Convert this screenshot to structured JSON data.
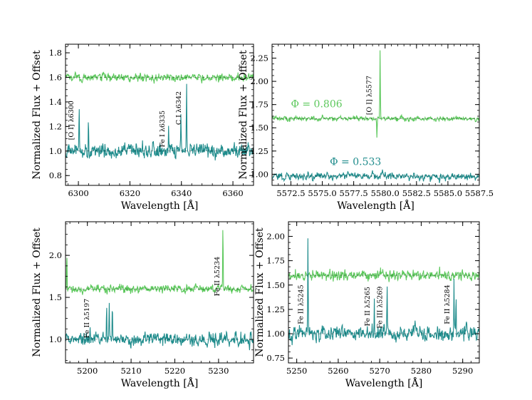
{
  "colors": {
    "phase_high": "#5cc85c",
    "phase_low": "#1f8c8c",
    "reference": "#000000"
  },
  "chart_data": [
    {
      "type": "line",
      "id": "oi-6300",
      "xlabel": "Wavelength [Å]",
      "ylabel": "Normalized Flux + Offset",
      "xlim": [
        6295,
        6368
      ],
      "ylim": [
        0.72,
        1.87
      ],
      "xticks": [
        6300,
        6320,
        6340,
        6360
      ],
      "xtick_labels": [
        "6300",
        "6320",
        "6340",
        "6360"
      ],
      "yticks": [
        0.8,
        1.0,
        1.2,
        1.4,
        1.6,
        1.8
      ],
      "ytick_labels": [
        "0.8",
        "1.0",
        "1.2",
        "1.4",
        "1.6",
        "1.8"
      ],
      "series": [
        {
          "name": "Φ = 0.806",
          "color": "#5cc85c",
          "baseline": 1.6,
          "noise": 0.025,
          "features": []
        },
        {
          "name": "Φ = 0.533",
          "color": "#1f8c8c",
          "baseline": 1.0,
          "noise": 0.045,
          "features": [
            {
              "x": 6300.3,
              "height": 0.34
            },
            {
              "x": 6303.9,
              "height": 0.25
            },
            {
              "x": 6335.0,
              "height": 0.22
            },
            {
              "x": 6339.8,
              "height": 0.25
            },
            {
              "x": 6342.0,
              "height": 0.56
            }
          ]
        }
      ],
      "annotations": [
        {
          "text": "[O I] λ6300",
          "x": 6298.0,
          "y": 1.25
        },
        {
          "text": "Fe I λ6335",
          "x": 6333.5,
          "y": 1.18
        },
        {
          "text": "C I λ6342",
          "x": 6339.8,
          "y": 1.35
        }
      ],
      "phase_labels": []
    },
    {
      "type": "line",
      "id": "oi-5577",
      "xlabel": "Wavelength [Å]",
      "ylabel": "Normalized Flux + Offset",
      "xlim": [
        5571.0,
        5587.5
      ],
      "ylim": [
        0.88,
        2.4
      ],
      "xticks": [
        5572.5,
        5575.0,
        5577.5,
        5580.0,
        5582.5,
        5585.0,
        5587.5
      ],
      "xtick_labels": [
        "5572.5",
        "5575.0",
        "5577.5",
        "5580.0",
        "5582.5",
        "5585.0",
        "5587.5"
      ],
      "yticks": [
        1.0,
        1.25,
        1.5,
        1.75,
        2.0,
        2.25
      ],
      "ytick_labels": [
        "1.00",
        "1.25",
        "1.50",
        "1.75",
        "2.00",
        "2.25"
      ],
      "series": [
        {
          "name": "Φ = 0.806",
          "color": "#5cc85c",
          "baseline": 1.6,
          "noise": 0.02,
          "features": [
            {
              "x": 5579.6,
              "height": 0.75
            },
            {
              "x": 5579.35,
              "height": -0.2
            }
          ]
        },
        {
          "name": "Φ = 0.533",
          "color": "#1f8c8c",
          "baseline": 0.98,
          "noise": 0.03,
          "features": []
        }
      ],
      "annotations": [
        {
          "text": "[O I] λ5577",
          "x": 5578.9,
          "y": 1.85
        }
      ],
      "phase_labels": [
        {
          "text": "Φ = 0.806",
          "color": "#5cc85c",
          "x": 5572.5,
          "y": 1.72
        },
        {
          "text": "Φ = 0.533",
          "color": "#1f8c8c",
          "x": 5575.6,
          "y": 1.1
        }
      ]
    },
    {
      "type": "line",
      "id": "fe-ii-5197",
      "xlabel": "Wavelength [Å]",
      "ylabel": "Normalized Flux + Offset",
      "xlim": [
        5195,
        5238
      ],
      "ylim": [
        0.72,
        2.4
      ],
      "xticks": [
        5200,
        5210,
        5220,
        5230
      ],
      "xtick_labels": [
        "5200",
        "5210",
        "5220",
        "5230"
      ],
      "yticks": [
        1.0,
        1.5,
        2.0
      ],
      "ytick_labels": [
        "1.0",
        "1.5",
        "2.0"
      ],
      "series": [
        {
          "name": "Φ = 0.806",
          "color": "#5cc85c",
          "baseline": 1.6,
          "noise": 0.035,
          "features": [
            {
              "x": 5195.3,
              "height": 0.4
            },
            {
              "x": 5231.0,
              "height": 0.78
            }
          ]
        },
        {
          "name": "Φ = 0.533",
          "color": "#1f8c8c",
          "baseline": 1.0,
          "noise": 0.06,
          "features": [
            {
              "x": 5200.6,
              "height": 0.22
            },
            {
              "x": 5204.4,
              "height": 0.48
            },
            {
              "x": 5205.0,
              "height": 0.48
            },
            {
              "x": 5205.7,
              "height": 0.42
            }
          ]
        }
      ],
      "annotations": [
        {
          "text": "Fe II λ5197",
          "x": 5200.4,
          "y": 1.25
        },
        {
          "text": "Fe II λ5234",
          "x": 5230.2,
          "y": 1.75
        }
      ],
      "phase_labels": []
    },
    {
      "type": "line",
      "id": "fe-ii-5245",
      "xlabel": "Wavelength [Å]",
      "ylabel": "Normalized Flux + Offset",
      "xlim": [
        5248,
        5294
      ],
      "ylim": [
        0.7,
        2.15
      ],
      "xticks": [
        5250,
        5260,
        5270,
        5280,
        5290
      ],
      "xtick_labels": [
        "5250",
        "5260",
        "5270",
        "5280",
        "5290"
      ],
      "yticks": [
        0.75,
        1.0,
        1.25,
        1.5,
        1.75,
        2.0
      ],
      "ytick_labels": [
        "0.75",
        "1.00",
        "1.25",
        "1.50",
        "1.75",
        "2.00"
      ],
      "series": [
        {
          "name": "Φ = 0.806",
          "color": "#5cc85c",
          "baseline": 1.6,
          "noise": 0.04,
          "features": []
        },
        {
          "name": "Φ = 0.533",
          "color": "#1f8c8c",
          "baseline": 1.0,
          "noise": 0.06,
          "features": [
            {
              "x": 5252.7,
              "height": 1.07
            },
            {
              "x": 5268.7,
              "height": 0.38
            },
            {
              "x": 5271.8,
              "height": 0.42
            },
            {
              "x": 5287.9,
              "height": 0.46
            },
            {
              "x": 5288.4,
              "height": 0.44
            }
          ]
        }
      ],
      "annotations": [
        {
          "text": "Fe II λ5245",
          "x": 5251.5,
          "y": 1.3
        },
        {
          "text": "Fe II λ5265",
          "x": 5267.6,
          "y": 1.28
        },
        {
          "text": "Fe III λ5269",
          "x": 5270.6,
          "y": 1.27
        },
        {
          "text": "Fe II λ5284",
          "x": 5286.8,
          "y": 1.3
        }
      ],
      "phase_labels": []
    }
  ]
}
